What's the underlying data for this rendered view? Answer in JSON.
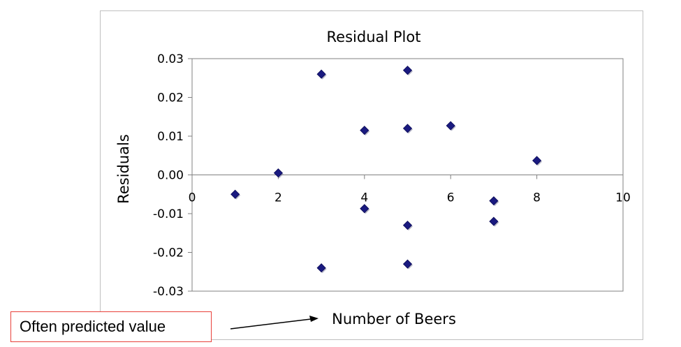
{
  "annotation": {
    "label": "Often predicted value",
    "border_color": "#e8413a"
  },
  "chart_data": {
    "type": "scatter",
    "title": "Residual Plot",
    "xlabel": "Number of Beers",
    "ylabel": "Residuals",
    "xlim": [
      0,
      10
    ],
    "ylim": [
      -0.03,
      0.03
    ],
    "x_ticks": [
      "0",
      "2",
      "4",
      "6",
      "8",
      "10"
    ],
    "y_ticks": [
      "-0.03",
      "-0.02",
      "-0.01",
      "0.00",
      "0.01",
      "0.02",
      "0.03"
    ],
    "grid": false,
    "marker": "diamond",
    "marker_color": "#1a1a80",
    "points": [
      {
        "x": 1,
        "y": -0.005
      },
      {
        "x": 2,
        "y": 0.0005
      },
      {
        "x": 3,
        "y": 0.026
      },
      {
        "x": 3,
        "y": -0.024
      },
      {
        "x": 4,
        "y": 0.0115
      },
      {
        "x": 4,
        "y": -0.0087
      },
      {
        "x": 5,
        "y": 0.027
      },
      {
        "x": 5,
        "y": 0.012
      },
      {
        "x": 5,
        "y": -0.013
      },
      {
        "x": 5,
        "y": -0.023
      },
      {
        "x": 6,
        "y": 0.0127
      },
      {
        "x": 7,
        "y": -0.0067
      },
      {
        "x": 7,
        "y": -0.012
      },
      {
        "x": 8,
        "y": 0.0037
      }
    ]
  }
}
